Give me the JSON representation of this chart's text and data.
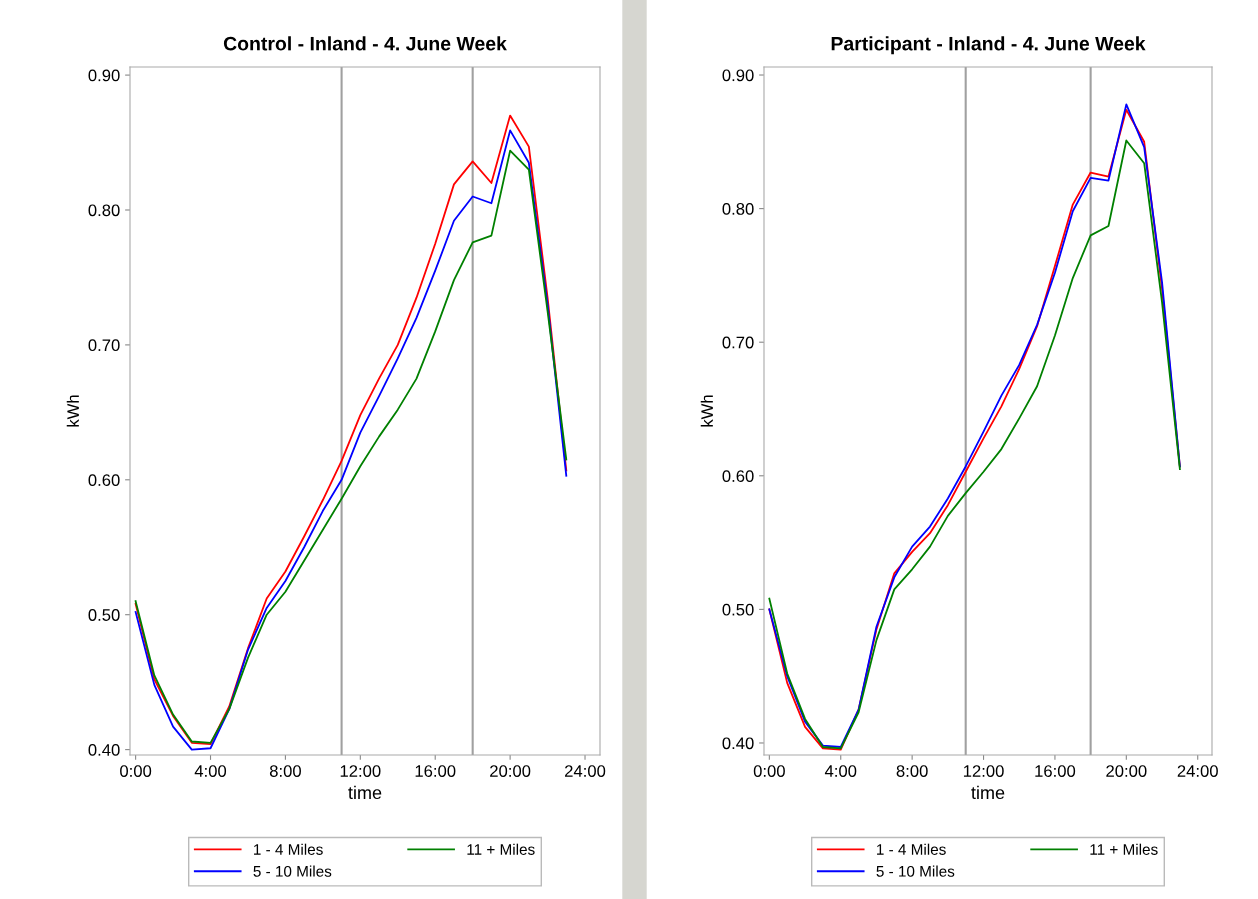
{
  "chart_data": [
    {
      "type": "line",
      "title": "Control - Inland - 4. June Week",
      "xlabel": "time",
      "ylabel": "kWh",
      "x": [
        0,
        1,
        2,
        3,
        4,
        5,
        6,
        7,
        8,
        9,
        10,
        11,
        12,
        13,
        14,
        15,
        16,
        17,
        18,
        19,
        20,
        21,
        22,
        23
      ],
      "series": [
        {
          "name": "1 - 4 Miles",
          "color": "#ff0000",
          "values": [
            0.508,
            0.452,
            0.425,
            0.405,
            0.404,
            0.432,
            0.475,
            0.512,
            0.532,
            0.558,
            0.585,
            0.614,
            0.648,
            0.675,
            0.7,
            0.735,
            0.775,
            0.819,
            0.836,
            0.82,
            0.87,
            0.847,
            0.735,
            0.607
          ]
        },
        {
          "name": "5 - 10 Miles",
          "color": "#0000ff",
          "values": [
            0.502,
            0.448,
            0.417,
            0.4,
            0.401,
            0.43,
            0.474,
            0.505,
            0.525,
            0.55,
            0.577,
            0.6,
            0.635,
            0.662,
            0.69,
            0.72,
            0.755,
            0.792,
            0.81,
            0.805,
            0.859,
            0.835,
            0.73,
            0.603
          ]
        },
        {
          "name": "11 + Miles",
          "color": "#008000",
          "values": [
            0.51,
            0.455,
            0.426,
            0.406,
            0.405,
            0.43,
            0.468,
            0.5,
            0.517,
            0.54,
            0.563,
            0.586,
            0.61,
            0.632,
            0.652,
            0.675,
            0.71,
            0.748,
            0.776,
            0.781,
            0.844,
            0.83,
            0.725,
            0.615
          ]
        }
      ],
      "xlim": [
        -0.3,
        24.8
      ],
      "xticks": [
        {
          "value": 0,
          "label": "0:00"
        },
        {
          "value": 4,
          "label": "4:00"
        },
        {
          "value": 8,
          "label": "8:00"
        },
        {
          "value": 12,
          "label": "12:00"
        },
        {
          "value": 16,
          "label": "16:00"
        },
        {
          "value": 20,
          "label": "20:00"
        },
        {
          "value": 24,
          "label": "24:00"
        }
      ],
      "ylim": [
        0.396,
        0.906
      ],
      "yticks": [
        {
          "value": 0.4,
          "label": "0.40"
        },
        {
          "value": 0.5,
          "label": "0.50"
        },
        {
          "value": 0.6,
          "label": "0.60"
        },
        {
          "value": 0.7,
          "label": "0.70"
        },
        {
          "value": 0.8,
          "label": "0.80"
        },
        {
          "value": 0.9,
          "label": "0.90"
        }
      ],
      "ref_lines": [
        {
          "axis": "x",
          "value": 11,
          "color": "#a0a0a0"
        },
        {
          "axis": "x",
          "value": 18,
          "color": "#a0a0a0"
        }
      ],
      "grid": false,
      "legend": "bottom",
      "marker": "none",
      "line_style": "solid"
    },
    {
      "type": "line",
      "title": "Participant - Inland - 4. June Week",
      "xlabel": "time",
      "ylabel": "kWh",
      "x": [
        0,
        1,
        2,
        3,
        4,
        5,
        6,
        7,
        8,
        9,
        10,
        11,
        12,
        13,
        14,
        15,
        16,
        17,
        18,
        19,
        20,
        21,
        22,
        23
      ],
      "series": [
        {
          "name": "1 - 4 Miles",
          "color": "#ff0000",
          "values": [
            0.5,
            0.445,
            0.412,
            0.396,
            0.395,
            0.425,
            0.485,
            0.527,
            0.543,
            0.557,
            0.578,
            0.603,
            0.628,
            0.652,
            0.68,
            0.712,
            0.757,
            0.803,
            0.827,
            0.824,
            0.874,
            0.85,
            0.74,
            0.607
          ]
        },
        {
          "name": "5 - 10 Miles",
          "color": "#0000ff",
          "values": [
            0.5,
            0.45,
            0.416,
            0.398,
            0.397,
            0.425,
            0.487,
            0.524,
            0.547,
            0.562,
            0.583,
            0.607,
            0.633,
            0.66,
            0.683,
            0.713,
            0.752,
            0.798,
            0.823,
            0.821,
            0.878,
            0.846,
            0.745,
            0.607
          ]
        },
        {
          "name": "11 + Miles",
          "color": "#008000",
          "values": [
            0.508,
            0.452,
            0.418,
            0.397,
            0.396,
            0.423,
            0.477,
            0.515,
            0.53,
            0.547,
            0.57,
            0.587,
            0.603,
            0.62,
            0.643,
            0.667,
            0.705,
            0.748,
            0.78,
            0.787,
            0.851,
            0.834,
            0.73,
            0.605
          ]
        }
      ],
      "xlim": [
        -0.3,
        24.8
      ],
      "xticks": [
        {
          "value": 0,
          "label": "0:00"
        },
        {
          "value": 4,
          "label": "4:00"
        },
        {
          "value": 8,
          "label": "8:00"
        },
        {
          "value": 12,
          "label": "12:00"
        },
        {
          "value": 16,
          "label": "16:00"
        },
        {
          "value": 20,
          "label": "20:00"
        },
        {
          "value": 24,
          "label": "24:00"
        }
      ],
      "ylim": [
        0.391,
        0.906
      ],
      "yticks": [
        {
          "value": 0.4,
          "label": "0.40"
        },
        {
          "value": 0.5,
          "label": "0.50"
        },
        {
          "value": 0.6,
          "label": "0.60"
        },
        {
          "value": 0.7,
          "label": "0.70"
        },
        {
          "value": 0.8,
          "label": "0.80"
        },
        {
          "value": 0.9,
          "label": "0.90"
        }
      ],
      "ref_lines": [
        {
          "axis": "x",
          "value": 11,
          "color": "#a0a0a0"
        },
        {
          "axis": "x",
          "value": 18,
          "color": "#a0a0a0"
        }
      ],
      "grid": false,
      "legend": "bottom",
      "marker": "none",
      "line_style": "solid"
    }
  ]
}
